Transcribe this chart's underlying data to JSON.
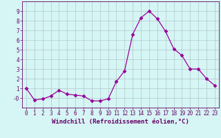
{
  "x": [
    0,
    1,
    2,
    3,
    4,
    5,
    6,
    7,
    8,
    9,
    10,
    11,
    12,
    13,
    14,
    15,
    16,
    17,
    18,
    19,
    20,
    21,
    22,
    23
  ],
  "y": [
    1.0,
    -0.2,
    -0.1,
    0.2,
    0.8,
    0.4,
    0.3,
    0.2,
    -0.3,
    -0.3,
    -0.1,
    1.7,
    2.8,
    6.6,
    8.3,
    9.0,
    8.2,
    6.9,
    5.1,
    4.4,
    3.0,
    3.0,
    2.0,
    1.3
  ],
  "line_color": "#990099",
  "marker": "D",
  "marker_size": 2.5,
  "bg_color": "#d6f5f5",
  "grid_color": "#b0c8c8",
  "xlabel": "Windchill (Refroidissement éolien,°C)",
  "xlim": [
    -0.5,
    23.5
  ],
  "ylim": [
    -1.0,
    10.0
  ],
  "yticks": [
    0,
    1,
    2,
    3,
    4,
    5,
    6,
    7,
    8,
    9
  ],
  "ytick_labels": [
    "-0",
    "1",
    "2",
    "3",
    "4",
    "5",
    "6",
    "7",
    "8",
    "9"
  ],
  "xticks": [
    0,
    1,
    2,
    3,
    4,
    5,
    6,
    7,
    8,
    9,
    10,
    11,
    12,
    13,
    14,
    15,
    16,
    17,
    18,
    19,
    20,
    21,
    22,
    23
  ],
  "tick_label_size": 5.5,
  "xlabel_size": 6.5,
  "axis_color": "#660066",
  "tick_color": "#660066"
}
